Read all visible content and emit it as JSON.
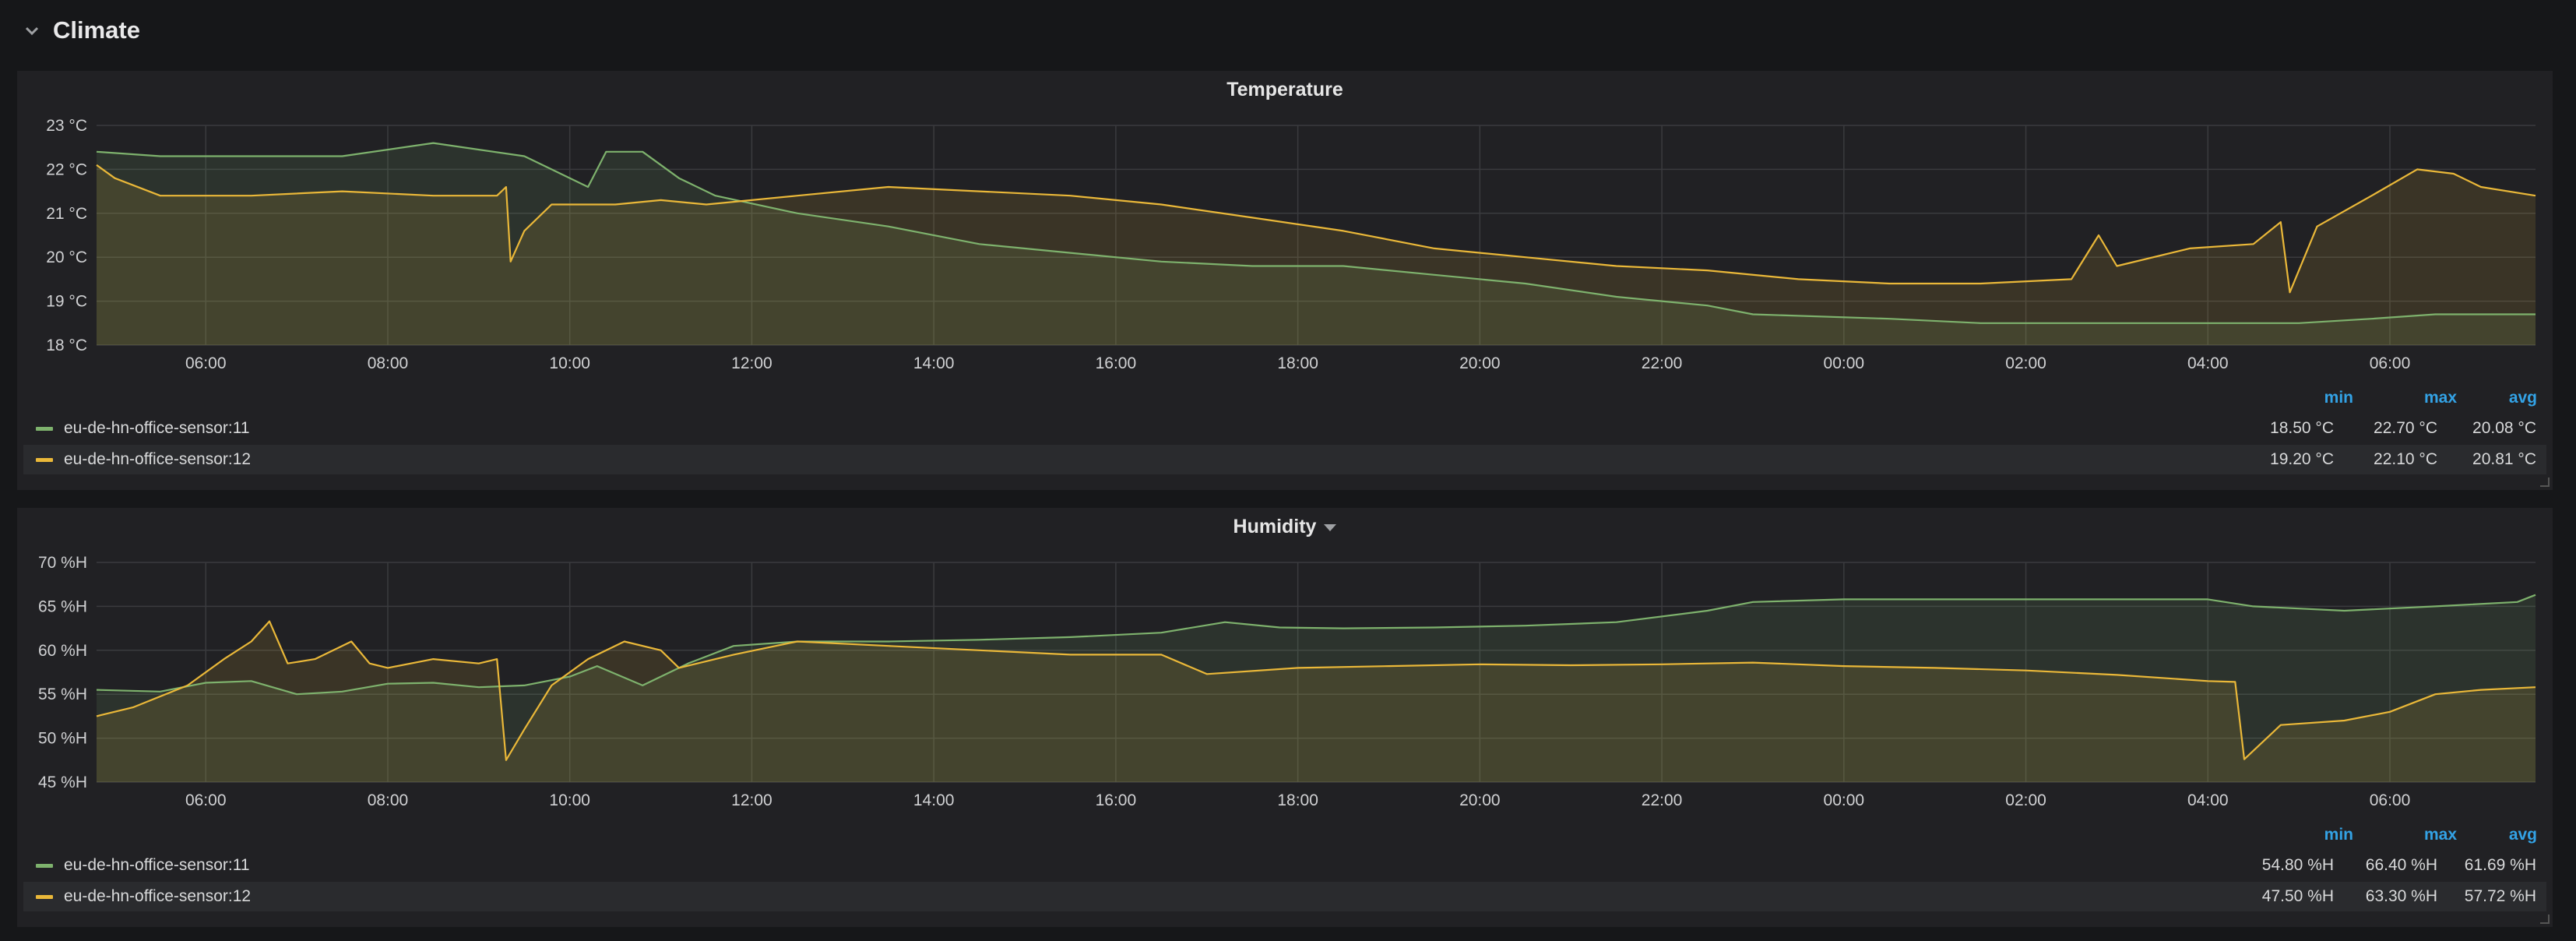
{
  "row": {
    "title": "Climate",
    "icon": "chevron-down-icon"
  },
  "colors": {
    "sensor11": "#7eb26d",
    "sensor12": "#eab839",
    "legend_header": "#33a2e5"
  },
  "panels": [
    {
      "id": "temp",
      "title": "Temperature",
      "has_menu_caret": false,
      "legend": {
        "headers": [
          "min",
          "max",
          "avg"
        ],
        "rows": [
          {
            "name": "eu-de-hn-office-sensor:11",
            "min": "18.50 °C",
            "max": "22.70 °C",
            "avg": "20.08 °C"
          },
          {
            "name": "eu-de-hn-office-sensor:12",
            "min": "19.20 °C",
            "max": "22.10 °C",
            "avg": "20.81 °C"
          }
        ]
      }
    },
    {
      "id": "hum",
      "title": "Humidity",
      "has_menu_caret": true,
      "legend": {
        "headers": [
          "min",
          "max",
          "avg"
        ],
        "rows": [
          {
            "name": "eu-de-hn-office-sensor:11",
            "min": "54.80 %H",
            "max": "66.40 %H",
            "avg": "61.69 %H"
          },
          {
            "name": "eu-de-hn-office-sensor:12",
            "min": "47.50 %H",
            "max": "63.30 %H",
            "avg": "57.72 %H"
          }
        ]
      }
    }
  ],
  "chart_data": [
    {
      "type": "area",
      "title": "Temperature",
      "x_unit": "hours",
      "x_range": [
        4.8,
        31.6
      ],
      "x_ticks": [
        6,
        8,
        10,
        12,
        14,
        16,
        18,
        20,
        22,
        24,
        26,
        28,
        30
      ],
      "x_tick_labels": [
        "06:00",
        "08:00",
        "10:00",
        "12:00",
        "14:00",
        "16:00",
        "18:00",
        "20:00",
        "22:00",
        "00:00",
        "02:00",
        "04:00",
        "06:00"
      ],
      "ylim": [
        18,
        23
      ],
      "y_ticks": [
        18,
        19,
        20,
        21,
        22,
        23
      ],
      "y_tick_labels": [
        "18 °C",
        "19 °C",
        "20 °C",
        "21 °C",
        "22 °C",
        "23 °C"
      ],
      "grid": true,
      "legend": "bottom",
      "series": [
        {
          "name": "eu-de-hn-office-sensor:11",
          "color": "#7eb26d",
          "points": [
            [
              4.8,
              22.4
            ],
            [
              5.5,
              22.3
            ],
            [
              6.5,
              22.3
            ],
            [
              7.5,
              22.3
            ],
            [
              8.5,
              22.6
            ],
            [
              9.5,
              22.3
            ],
            [
              9.8,
              22.0
            ],
            [
              10.2,
              21.6
            ],
            [
              10.4,
              22.4
            ],
            [
              10.8,
              22.4
            ],
            [
              11.2,
              21.8
            ],
            [
              11.6,
              21.4
            ],
            [
              12.5,
              21.0
            ],
            [
              13.5,
              20.7
            ],
            [
              14.5,
              20.3
            ],
            [
              15.5,
              20.1
            ],
            [
              16.5,
              19.9
            ],
            [
              17.5,
              19.8
            ],
            [
              18.5,
              19.8
            ],
            [
              19.5,
              19.6
            ],
            [
              20.5,
              19.4
            ],
            [
              21.5,
              19.1
            ],
            [
              22.5,
              18.9
            ],
            [
              23.0,
              18.7
            ],
            [
              24.5,
              18.6
            ],
            [
              25.5,
              18.5
            ],
            [
              27.5,
              18.5
            ],
            [
              29.0,
              18.5
            ],
            [
              29.8,
              18.6
            ],
            [
              30.5,
              18.7
            ],
            [
              31.6,
              18.7
            ]
          ]
        },
        {
          "name": "eu-de-hn-office-sensor:12",
          "color": "#eab839",
          "points": [
            [
              4.8,
              22.1
            ],
            [
              5.0,
              21.8
            ],
            [
              5.5,
              21.4
            ],
            [
              6.5,
              21.4
            ],
            [
              7.5,
              21.5
            ],
            [
              8.5,
              21.4
            ],
            [
              9.2,
              21.4
            ],
            [
              9.3,
              21.6
            ],
            [
              9.35,
              19.9
            ],
            [
              9.5,
              20.6
            ],
            [
              9.8,
              21.2
            ],
            [
              10.5,
              21.2
            ],
            [
              11.0,
              21.3
            ],
            [
              11.5,
              21.2
            ],
            [
              12.5,
              21.4
            ],
            [
              13.5,
              21.6
            ],
            [
              14.5,
              21.5
            ],
            [
              15.5,
              21.4
            ],
            [
              16.5,
              21.2
            ],
            [
              17.5,
              20.9
            ],
            [
              18.5,
              20.6
            ],
            [
              19.5,
              20.2
            ],
            [
              20.5,
              20.0
            ],
            [
              21.5,
              19.8
            ],
            [
              22.5,
              19.7
            ],
            [
              23.5,
              19.5
            ],
            [
              24.5,
              19.4
            ],
            [
              25.5,
              19.4
            ],
            [
              26.5,
              19.5
            ],
            [
              26.8,
              20.5
            ],
            [
              27.0,
              19.8
            ],
            [
              27.8,
              20.2
            ],
            [
              28.5,
              20.3
            ],
            [
              28.8,
              20.8
            ],
            [
              28.9,
              19.2
            ],
            [
              29.2,
              20.7
            ],
            [
              29.8,
              21.4
            ],
            [
              30.3,
              22.0
            ],
            [
              30.7,
              21.9
            ],
            [
              31.0,
              21.6
            ],
            [
              31.6,
              21.4
            ]
          ]
        }
      ]
    },
    {
      "type": "area",
      "title": "Humidity",
      "x_unit": "hours",
      "x_range": [
        4.8,
        31.6
      ],
      "x_ticks": [
        6,
        8,
        10,
        12,
        14,
        16,
        18,
        20,
        22,
        24,
        26,
        28,
        30
      ],
      "x_tick_labels": [
        "06:00",
        "08:00",
        "10:00",
        "12:00",
        "14:00",
        "16:00",
        "18:00",
        "20:00",
        "22:00",
        "00:00",
        "02:00",
        "04:00",
        "06:00"
      ],
      "ylim": [
        45,
        70
      ],
      "y_ticks": [
        45,
        50,
        55,
        60,
        65,
        70
      ],
      "y_tick_labels": [
        "45 %H",
        "50 %H",
        "55 %H",
        "60 %H",
        "65 %H",
        "70 %H"
      ],
      "grid": true,
      "legend": "bottom",
      "series": [
        {
          "name": "eu-de-hn-office-sensor:11",
          "color": "#7eb26d",
          "points": [
            [
              4.8,
              55.5
            ],
            [
              5.5,
              55.3
            ],
            [
              6.0,
              56.3
            ],
            [
              6.5,
              56.5
            ],
            [
              7.0,
              55.0
            ],
            [
              7.5,
              55.3
            ],
            [
              8.0,
              56.2
            ],
            [
              8.5,
              56.3
            ],
            [
              9.0,
              55.8
            ],
            [
              9.5,
              56.0
            ],
            [
              10.0,
              57.0
            ],
            [
              10.3,
              58.2
            ],
            [
              10.8,
              56.0
            ],
            [
              11.3,
              58.5
            ],
            [
              11.8,
              60.5
            ],
            [
              12.5,
              61.0
            ],
            [
              13.5,
              61.0
            ],
            [
              14.5,
              61.2
            ],
            [
              15.5,
              61.5
            ],
            [
              16.5,
              62.0
            ],
            [
              17.2,
              63.2
            ],
            [
              17.8,
              62.6
            ],
            [
              18.5,
              62.5
            ],
            [
              19.5,
              62.6
            ],
            [
              20.5,
              62.8
            ],
            [
              21.5,
              63.2
            ],
            [
              22.5,
              64.5
            ],
            [
              23.0,
              65.5
            ],
            [
              24.0,
              65.8
            ],
            [
              25.0,
              65.8
            ],
            [
              26.5,
              65.8
            ],
            [
              28.0,
              65.8
            ],
            [
              28.5,
              65.0
            ],
            [
              29.5,
              64.5
            ],
            [
              30.5,
              65.0
            ],
            [
              31.4,
              65.5
            ],
            [
              31.6,
              66.3
            ]
          ]
        },
        {
          "name": "eu-de-hn-office-sensor:12",
          "color": "#eab839",
          "points": [
            [
              4.8,
              52.5
            ],
            [
              5.2,
              53.5
            ],
            [
              5.8,
              56.0
            ],
            [
              6.2,
              59.0
            ],
            [
              6.5,
              61.0
            ],
            [
              6.7,
              63.3
            ],
            [
              6.9,
              58.5
            ],
            [
              7.2,
              59.0
            ],
            [
              7.6,
              61.0
            ],
            [
              7.8,
              58.5
            ],
            [
              8.0,
              58.0
            ],
            [
              8.5,
              59.0
            ],
            [
              9.0,
              58.5
            ],
            [
              9.2,
              59.0
            ],
            [
              9.3,
              47.5
            ],
            [
              9.5,
              51.0
            ],
            [
              9.8,
              56.0
            ],
            [
              10.2,
              59.0
            ],
            [
              10.6,
              61.0
            ],
            [
              11.0,
              60.0
            ],
            [
              11.2,
              58.0
            ],
            [
              11.8,
              59.5
            ],
            [
              12.5,
              61.0
            ],
            [
              13.5,
              60.5
            ],
            [
              14.5,
              60.0
            ],
            [
              15.5,
              59.5
            ],
            [
              16.5,
              59.5
            ],
            [
              17.0,
              57.3
            ],
            [
              18.0,
              58.0
            ],
            [
              19.0,
              58.2
            ],
            [
              20.0,
              58.4
            ],
            [
              21.0,
              58.3
            ],
            [
              22.0,
              58.4
            ],
            [
              23.0,
              58.6
            ],
            [
              24.0,
              58.2
            ],
            [
              25.0,
              58.0
            ],
            [
              26.0,
              57.7
            ],
            [
              27.0,
              57.2
            ],
            [
              28.0,
              56.5
            ],
            [
              28.3,
              56.4
            ],
            [
              28.4,
              47.6
            ],
            [
              28.8,
              51.5
            ],
            [
              29.5,
              52.0
            ],
            [
              30.0,
              53.0
            ],
            [
              30.5,
              55.0
            ],
            [
              31.0,
              55.5
            ],
            [
              31.6,
              55.8
            ]
          ]
        }
      ]
    }
  ]
}
